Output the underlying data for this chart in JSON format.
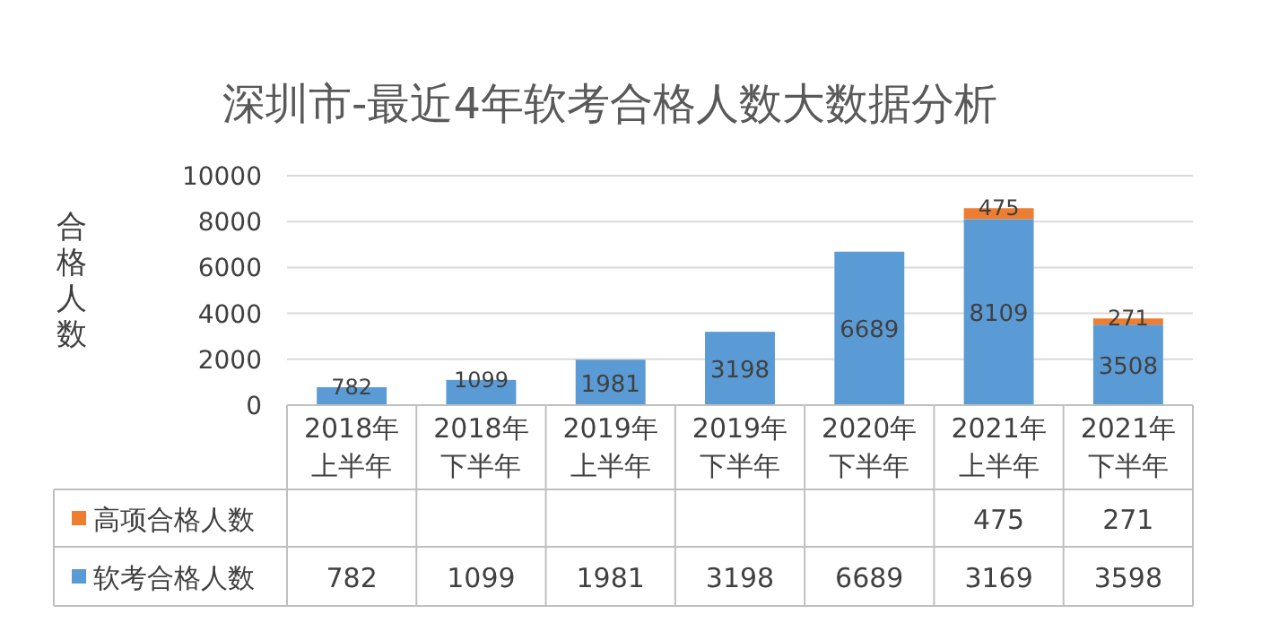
{
  "chart_data": [
    {
      "type": "bar",
      "title": "深圳市-最近4年软考合格人数大数据分析",
      "ylabel": "合格人数",
      "stacked": true,
      "categories": [
        "2018年上半年",
        "2018年下半年",
        "2019年上半年",
        "2019年下半年",
        "2020年下半年",
        "2021年上半年",
        "2021年下半年"
      ],
      "series": [
        {
          "name": "软考合格人数",
          "color": "#5b9bd5",
          "values": [
            782,
            1099,
            1981,
            3198,
            6689,
            8109,
            3508
          ]
        },
        {
          "name": "高项合格人数",
          "color": "#ed7d31",
          "values": [
            null,
            null,
            null,
            null,
            null,
            475,
            271
          ]
        }
      ],
      "ylim": [
        0,
        10000
      ],
      "yticks": [
        0,
        2000,
        4000,
        6000,
        8000,
        10000
      ],
      "grid": "y",
      "data_labels": true,
      "legend": "bottom"
    },
    {
      "type": "other",
      "cell_labels": [
        [
          null,
          null,
          null,
          null,
          null,
          "475",
          "271"
        ],
        [
          "782",
          "1099",
          "1981",
          "3198",
          "6689",
          "3169",
          "3598"
        ]
      ]
    }
  ]
}
